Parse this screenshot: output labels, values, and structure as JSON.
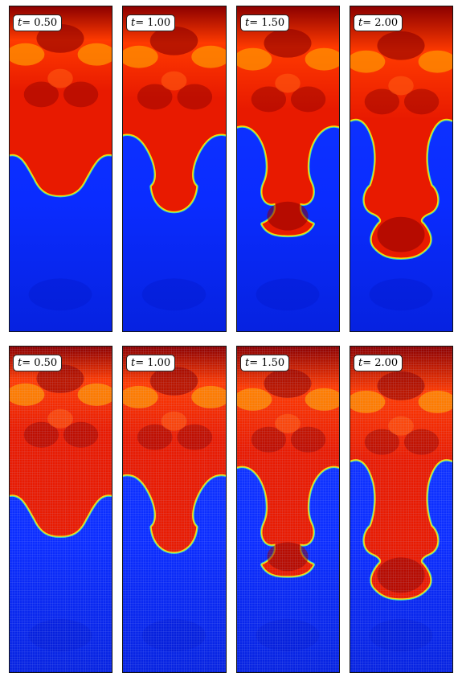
{
  "figure": {
    "rows": [
      {
        "name": "solution",
        "panels": [
          {
            "t_symbol": "t",
            "t_value": "= 0.50",
            "stage": 0.5
          },
          {
            "t_symbol": "t",
            "t_value": "= 1.00",
            "stage": 1.0
          },
          {
            "t_symbol": "t",
            "t_value": "= 1.50",
            "stage": 1.5
          },
          {
            "t_symbol": "t",
            "t_value": "= 2.00",
            "stage": 2.0
          }
        ]
      },
      {
        "name": "mesh",
        "panels": [
          {
            "t_symbol": "t",
            "t_value": "= 0.50",
            "stage": 0.5
          },
          {
            "t_symbol": "t",
            "t_value": "= 1.00",
            "stage": 1.0
          },
          {
            "t_symbol": "t",
            "t_value": "= 1.50",
            "stage": 1.5
          },
          {
            "t_symbol": "t",
            "t_value": "= 2.00",
            "stage": 2.0
          }
        ]
      }
    ],
    "colors": {
      "heavy_fluid": "#e81a00",
      "heavy_dark": "#8c0000",
      "light_fluid": "#0a2cff",
      "interface": "#38e0c0",
      "highlight": "#ff9a00"
    }
  }
}
